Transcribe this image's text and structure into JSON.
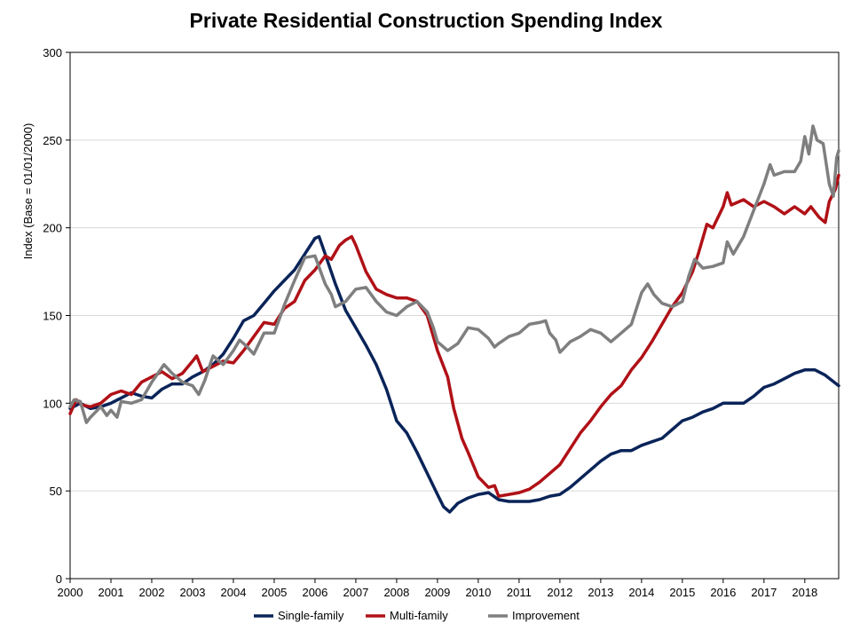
{
  "chart_data": {
    "type": "line",
    "title": "Private Residential Construction Spending Index",
    "ylabel": "Index  (Base = 01/01/2000)",
    "xlabel": "",
    "ylim": [
      0,
      300
    ],
    "xlim": [
      2000,
      2018.83
    ],
    "yticks": [
      0,
      50,
      100,
      150,
      200,
      250,
      300
    ],
    "xticks": [
      "2000",
      "2001",
      "2002",
      "2003",
      "2004",
      "2005",
      "2006",
      "2007",
      "2008",
      "2009",
      "2010",
      "2011",
      "2012",
      "2013",
      "2014",
      "2015",
      "2016",
      "2017",
      "2018"
    ],
    "grid": "horizontal",
    "legend": "bottom",
    "series": [
      {
        "name": "Single-family",
        "color": "#0a2459",
        "points": [
          [
            2000.0,
            97
          ],
          [
            2000.25,
            100
          ],
          [
            2000.5,
            97
          ],
          [
            2000.75,
            98
          ],
          [
            2001.0,
            100
          ],
          [
            2001.25,
            103
          ],
          [
            2001.5,
            106
          ],
          [
            2001.75,
            104
          ],
          [
            2002.0,
            103
          ],
          [
            2002.25,
            108
          ],
          [
            2002.5,
            111
          ],
          [
            2002.75,
            111
          ],
          [
            2003.0,
            115
          ],
          [
            2003.25,
            118
          ],
          [
            2003.5,
            122
          ],
          [
            2003.75,
            128
          ],
          [
            2004.0,
            137
          ],
          [
            2004.25,
            147
          ],
          [
            2004.5,
            150
          ],
          [
            2004.75,
            157
          ],
          [
            2005.0,
            164
          ],
          [
            2005.25,
            170
          ],
          [
            2005.5,
            176
          ],
          [
            2005.75,
            185
          ],
          [
            2006.0,
            194
          ],
          [
            2006.1,
            195
          ],
          [
            2006.25,
            185
          ],
          [
            2006.5,
            168
          ],
          [
            2006.75,
            153
          ],
          [
            2007.0,
            143
          ],
          [
            2007.25,
            133
          ],
          [
            2007.5,
            122
          ],
          [
            2007.75,
            108
          ],
          [
            2008.0,
            90
          ],
          [
            2008.25,
            83
          ],
          [
            2008.5,
            72
          ],
          [
            2008.75,
            60
          ],
          [
            2009.0,
            48
          ],
          [
            2009.15,
            41
          ],
          [
            2009.3,
            38
          ],
          [
            2009.5,
            43
          ],
          [
            2009.75,
            46
          ],
          [
            2010.0,
            48
          ],
          [
            2010.25,
            49
          ],
          [
            2010.5,
            45
          ],
          [
            2010.75,
            44
          ],
          [
            2011.0,
            44
          ],
          [
            2011.25,
            44
          ],
          [
            2011.5,
            45
          ],
          [
            2011.75,
            47
          ],
          [
            2012.0,
            48
          ],
          [
            2012.25,
            52
          ],
          [
            2012.5,
            57
          ],
          [
            2012.75,
            62
          ],
          [
            2013.0,
            67
          ],
          [
            2013.25,
            71
          ],
          [
            2013.5,
            73
          ],
          [
            2013.75,
            73
          ],
          [
            2014.0,
            76
          ],
          [
            2014.25,
            78
          ],
          [
            2014.5,
            80
          ],
          [
            2014.75,
            85
          ],
          [
            2015.0,
            90
          ],
          [
            2015.25,
            92
          ],
          [
            2015.5,
            95
          ],
          [
            2015.75,
            97
          ],
          [
            2016.0,
            100
          ],
          [
            2016.25,
            100
          ],
          [
            2016.5,
            100
          ],
          [
            2016.75,
            104
          ],
          [
            2017.0,
            109
          ],
          [
            2017.25,
            111
          ],
          [
            2017.5,
            114
          ],
          [
            2017.75,
            117
          ],
          [
            2018.0,
            119
          ],
          [
            2018.25,
            119
          ],
          [
            2018.5,
            116
          ],
          [
            2018.83,
            110
          ]
        ]
      },
      {
        "name": "Multi-family",
        "color": "#b01117",
        "points": [
          [
            2000.0,
            94
          ],
          [
            2000.15,
            102
          ],
          [
            2000.3,
            99
          ],
          [
            2000.5,
            98
          ],
          [
            2000.75,
            100
          ],
          [
            2001.0,
            105
          ],
          [
            2001.25,
            107
          ],
          [
            2001.5,
            105
          ],
          [
            2001.75,
            112
          ],
          [
            2002.0,
            115
          ],
          [
            2002.25,
            118
          ],
          [
            2002.5,
            114
          ],
          [
            2002.75,
            117
          ],
          [
            2003.0,
            124
          ],
          [
            2003.1,
            127
          ],
          [
            2003.25,
            118
          ],
          [
            2003.5,
            121
          ],
          [
            2003.75,
            124
          ],
          [
            2004.0,
            123
          ],
          [
            2004.25,
            130
          ],
          [
            2004.5,
            138
          ],
          [
            2004.75,
            146
          ],
          [
            2005.0,
            145
          ],
          [
            2005.25,
            154
          ],
          [
            2005.5,
            158
          ],
          [
            2005.75,
            170
          ],
          [
            2006.0,
            176
          ],
          [
            2006.25,
            184
          ],
          [
            2006.4,
            182
          ],
          [
            2006.6,
            190
          ],
          [
            2006.75,
            193
          ],
          [
            2006.9,
            195
          ],
          [
            2007.0,
            190
          ],
          [
            2007.25,
            175
          ],
          [
            2007.5,
            165
          ],
          [
            2007.75,
            162
          ],
          [
            2008.0,
            160
          ],
          [
            2008.25,
            160
          ],
          [
            2008.5,
            158
          ],
          [
            2008.75,
            150
          ],
          [
            2008.9,
            138
          ],
          [
            2009.0,
            130
          ],
          [
            2009.25,
            115
          ],
          [
            2009.4,
            97
          ],
          [
            2009.6,
            80
          ],
          [
            2009.75,
            72
          ],
          [
            2010.0,
            58
          ],
          [
            2010.25,
            52
          ],
          [
            2010.4,
            53
          ],
          [
            2010.5,
            47
          ],
          [
            2010.75,
            48
          ],
          [
            2011.0,
            49
          ],
          [
            2011.25,
            51
          ],
          [
            2011.5,
            55
          ],
          [
            2011.75,
            60
          ],
          [
            2012.0,
            65
          ],
          [
            2012.25,
            74
          ],
          [
            2012.5,
            83
          ],
          [
            2012.75,
            90
          ],
          [
            2013.0,
            98
          ],
          [
            2013.25,
            105
          ],
          [
            2013.5,
            110
          ],
          [
            2013.75,
            119
          ],
          [
            2014.0,
            126
          ],
          [
            2014.25,
            135
          ],
          [
            2014.5,
            145
          ],
          [
            2014.75,
            155
          ],
          [
            2015.0,
            163
          ],
          [
            2015.25,
            175
          ],
          [
            2015.4,
            186
          ],
          [
            2015.6,
            202
          ],
          [
            2015.75,
            200
          ],
          [
            2016.0,
            212
          ],
          [
            2016.1,
            220
          ],
          [
            2016.2,
            213
          ],
          [
            2016.5,
            216
          ],
          [
            2016.75,
            212
          ],
          [
            2017.0,
            215
          ],
          [
            2017.25,
            212
          ],
          [
            2017.5,
            208
          ],
          [
            2017.75,
            212
          ],
          [
            2018.0,
            208
          ],
          [
            2018.15,
            212
          ],
          [
            2018.35,
            206
          ],
          [
            2018.5,
            203
          ],
          [
            2018.6,
            215
          ],
          [
            2018.75,
            222
          ],
          [
            2018.83,
            230
          ]
        ]
      },
      {
        "name": "Improvement",
        "color": "#7f7f7f",
        "points": [
          [
            2000.0,
            98
          ],
          [
            2000.1,
            102
          ],
          [
            2000.25,
            101
          ],
          [
            2000.4,
            89
          ],
          [
            2000.5,
            92
          ],
          [
            2000.75,
            98
          ],
          [
            2000.9,
            93
          ],
          [
            2001.0,
            96
          ],
          [
            2001.15,
            92
          ],
          [
            2001.25,
            101
          ],
          [
            2001.5,
            100
          ],
          [
            2001.75,
            102
          ],
          [
            2002.0,
            112
          ],
          [
            2002.15,
            117
          ],
          [
            2002.3,
            122
          ],
          [
            2002.5,
            117
          ],
          [
            2002.75,
            112
          ],
          [
            2003.0,
            110
          ],
          [
            2003.15,
            105
          ],
          [
            2003.3,
            113
          ],
          [
            2003.5,
            127
          ],
          [
            2003.75,
            122
          ],
          [
            2004.0,
            130
          ],
          [
            2004.15,
            136
          ],
          [
            2004.3,
            133
          ],
          [
            2004.5,
            128
          ],
          [
            2004.75,
            140
          ],
          [
            2005.0,
            140
          ],
          [
            2005.25,
            156
          ],
          [
            2005.5,
            170
          ],
          [
            2005.75,
            183
          ],
          [
            2006.0,
            184
          ],
          [
            2006.25,
            168
          ],
          [
            2006.4,
            162
          ],
          [
            2006.5,
            155
          ],
          [
            2006.75,
            158
          ],
          [
            2007.0,
            165
          ],
          [
            2007.25,
            166
          ],
          [
            2007.5,
            158
          ],
          [
            2007.75,
            152
          ],
          [
            2008.0,
            150
          ],
          [
            2008.25,
            155
          ],
          [
            2008.5,
            158
          ],
          [
            2008.75,
            152
          ],
          [
            2008.9,
            143
          ],
          [
            2009.0,
            135
          ],
          [
            2009.25,
            130
          ],
          [
            2009.5,
            134
          ],
          [
            2009.75,
            143
          ],
          [
            2010.0,
            142
          ],
          [
            2010.25,
            137
          ],
          [
            2010.4,
            132
          ],
          [
            2010.5,
            134
          ],
          [
            2010.75,
            138
          ],
          [
            2011.0,
            140
          ],
          [
            2011.25,
            145
          ],
          [
            2011.5,
            146
          ],
          [
            2011.65,
            147
          ],
          [
            2011.75,
            140
          ],
          [
            2011.9,
            136
          ],
          [
            2012.0,
            129
          ],
          [
            2012.25,
            135
          ],
          [
            2012.5,
            138
          ],
          [
            2012.75,
            142
          ],
          [
            2013.0,
            140
          ],
          [
            2013.25,
            135
          ],
          [
            2013.5,
            140
          ],
          [
            2013.75,
            145
          ],
          [
            2014.0,
            163
          ],
          [
            2014.15,
            168
          ],
          [
            2014.3,
            162
          ],
          [
            2014.5,
            157
          ],
          [
            2014.75,
            155
          ],
          [
            2015.0,
            158
          ],
          [
            2015.15,
            172
          ],
          [
            2015.3,
            182
          ],
          [
            2015.5,
            177
          ],
          [
            2015.75,
            178
          ],
          [
            2016.0,
            180
          ],
          [
            2016.1,
            192
          ],
          [
            2016.25,
            185
          ],
          [
            2016.5,
            195
          ],
          [
            2016.75,
            210
          ],
          [
            2017.0,
            225
          ],
          [
            2017.15,
            236
          ],
          [
            2017.25,
            230
          ],
          [
            2017.5,
            232
          ],
          [
            2017.75,
            232
          ],
          [
            2017.9,
            238
          ],
          [
            2018.0,
            252
          ],
          [
            2018.1,
            242
          ],
          [
            2018.2,
            258
          ],
          [
            2018.3,
            250
          ],
          [
            2018.45,
            248
          ],
          [
            2018.6,
            225
          ],
          [
            2018.7,
            218
          ],
          [
            2018.78,
            240
          ],
          [
            2018.83,
            244
          ]
        ]
      }
    ]
  }
}
